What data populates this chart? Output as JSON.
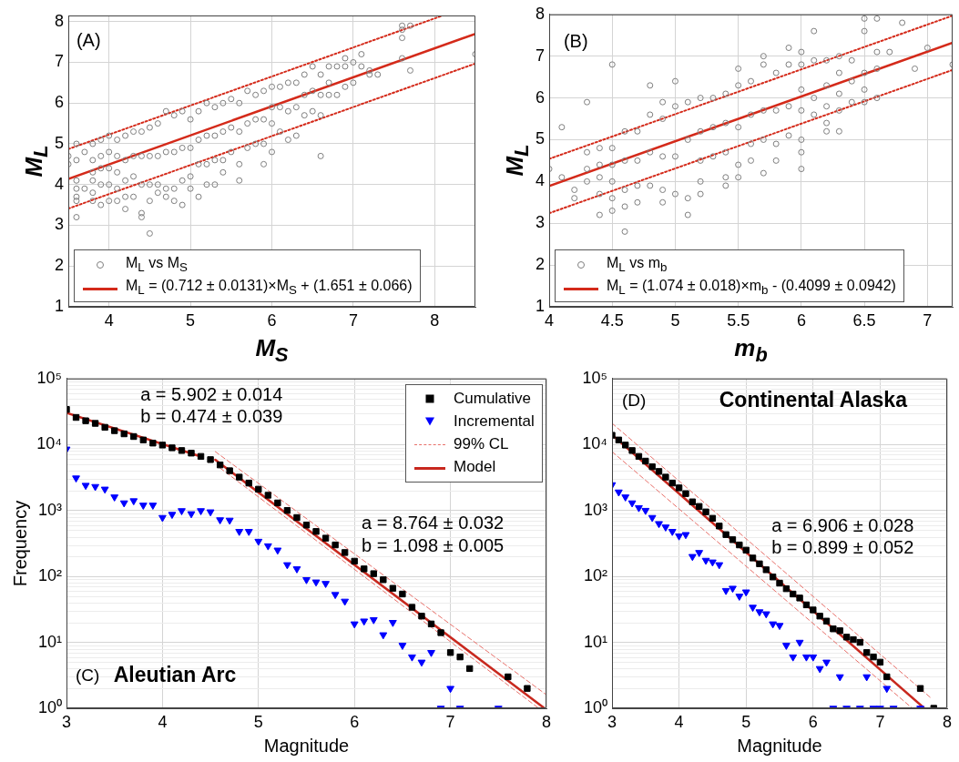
{
  "chart_data": [
    {
      "type": "scatter",
      "xlabel": "M$_{S}$",
      "ylabel": "M$_{L}$",
      "annotations": [
        "(A)"
      ],
      "xlim": [
        3.5,
        8.5
      ],
      "ylim": [
        1,
        8.15
      ],
      "xticks": [
        4,
        5,
        6,
        7,
        8
      ],
      "yticks": [
        1,
        2,
        3,
        4,
        5,
        6,
        7,
        8
      ],
      "grid": true,
      "legend": "bottom",
      "series": [
        {
          "name": "M$_{L}$ vs  M$_{S}$",
          "color": "#7f7f7f",
          "marker": "circle",
          "x": [
            3.5,
            3.5,
            3.6,
            3.6,
            3.6,
            3.6,
            3.6,
            3.6,
            3.6,
            3.7,
            3.7,
            3.8,
            3.8,
            3.8,
            3.8,
            3.8,
            3.8,
            3.9,
            3.9,
            3.9,
            3.9,
            3.9,
            4.0,
            4.0,
            4.0,
            4.0,
            4.0,
            4.1,
            4.1,
            4.1,
            4.1,
            4.1,
            4.2,
            4.2,
            4.2,
            4.2,
            4.2,
            4.3,
            4.3,
            4.3,
            4.3,
            4.4,
            4.4,
            4.4,
            4.4,
            4.4,
            4.5,
            4.5,
            4.5,
            4.5,
            4.5,
            4.6,
            4.6,
            4.6,
            4.6,
            4.7,
            4.7,
            4.7,
            4.7,
            4.8,
            4.8,
            4.8,
            4.8,
            4.9,
            4.9,
            4.9,
            4.9,
            5.0,
            5.0,
            5.0,
            5.0,
            5.1,
            5.1,
            5.1,
            5.1,
            5.2,
            5.2,
            5.2,
            5.2,
            5.3,
            5.3,
            5.3,
            5.3,
            5.4,
            5.4,
            5.4,
            5.4,
            5.5,
            5.5,
            5.5,
            5.6,
            5.6,
            5.6,
            5.6,
            5.7,
            5.7,
            5.7,
            5.8,
            5.8,
            5.8,
            5.9,
            5.9,
            5.9,
            5.9,
            6.0,
            6.0,
            6.0,
            6.0,
            6.1,
            6.1,
            6.1,
            6.2,
            6.2,
            6.2,
            6.3,
            6.3,
            6.3,
            6.4,
            6.4,
            6.4,
            6.5,
            6.5,
            6.5,
            6.6,
            6.6,
            6.6,
            6.6,
            6.7,
            6.7,
            6.7,
            6.8,
            6.8,
            6.9,
            6.9,
            6.9,
            7.0,
            7.0,
            7.1,
            7.1,
            7.2,
            7.2,
            7.3,
            7.6,
            7.6,
            7.6,
            7.6,
            7.7,
            7.7,
            8.5
          ],
          "values": [
            4.7,
            4.5,
            5.0,
            4.6,
            4.1,
            3.9,
            3.7,
            3.6,
            3.2,
            4.8,
            3.9,
            5.0,
            4.6,
            4.3,
            4.1,
            3.8,
            3.6,
            5.1,
            4.7,
            4.4,
            4.0,
            3.5,
            5.2,
            4.8,
            4.4,
            4.0,
            3.6,
            5.1,
            4.7,
            4.3,
            3.9,
            3.6,
            5.2,
            4.6,
            4.1,
            3.7,
            3.4,
            5.3,
            4.7,
            4.2,
            3.7,
            5.3,
            4.7,
            4.0,
            3.3,
            3.2,
            5.4,
            4.7,
            4.0,
            3.6,
            2.8,
            5.5,
            4.7,
            4.0,
            3.8,
            5.8,
            4.8,
            3.9,
            3.7,
            5.7,
            4.8,
            3.9,
            3.6,
            5.8,
            4.9,
            4.1,
            3.5,
            5.6,
            4.9,
            4.2,
            3.9,
            5.8,
            5.1,
            4.5,
            3.7,
            6.0,
            5.2,
            4.5,
            4.0,
            5.9,
            5.2,
            4.6,
            4.0,
            6.0,
            5.3,
            4.6,
            4.3,
            6.1,
            5.4,
            4.8,
            6.0,
            5.3,
            4.5,
            4.1,
            6.3,
            5.5,
            4.9,
            6.2,
            5.6,
            5.0,
            6.3,
            5.6,
            5.0,
            4.5,
            6.4,
            5.9,
            5.5,
            4.8,
            6.4,
            5.9,
            5.3,
            6.5,
            5.8,
            5.1,
            6.5,
            5.9,
            5.2,
            6.7,
            6.2,
            5.7,
            6.9,
            6.3,
            5.8,
            6.7,
            6.2,
            5.7,
            4.7,
            6.9,
            6.5,
            6.2,
            6.9,
            6.2,
            7.1,
            6.9,
            6.4,
            7.0,
            6.5,
            7.2,
            6.9,
            6.8,
            6.7,
            6.7,
            7.9,
            7.8,
            7.6,
            7.1,
            7.9,
            6.8,
            7.2
          ]
        },
        {
          "type": "line",
          "name": "M$_{L}$ = (0.712 ± 0.0131)×M$_{S}$ + (1.651 ± 0.066)",
          "color": "#d42a1a",
          "line_style": "solid",
          "marker": "none",
          "x": [
            3.5,
            8.5
          ],
          "values": [
            4.14,
            7.7
          ]
        },
        {
          "type": "line",
          "color": "#d42a1a",
          "line_style": "dotted",
          "marker": "none",
          "x": [
            3.5,
            8.1
          ],
          "values": [
            4.87,
            8.15
          ]
        },
        {
          "type": "line",
          "color": "#d42a1a",
          "line_style": "dotted",
          "marker": "none",
          "x": [
            3.5,
            8.5
          ],
          "values": [
            3.41,
            6.97
          ]
        }
      ]
    },
    {
      "type": "scatter",
      "xlabel": "m$_{b}$",
      "ylabel": "M$_{L}$",
      "annotations": [
        "(B)"
      ],
      "xlim": [
        4,
        7.2
      ],
      "ylim": [
        1,
        8
      ],
      "xticks": [
        4,
        4.5,
        5,
        5.5,
        6,
        6.5,
        7
      ],
      "yticks": [
        1,
        2,
        3,
        4,
        5,
        6,
        7,
        8
      ],
      "grid": true,
      "legend": "bottom",
      "series": [
        {
          "name": "M$_{L}$ vs  m$_{b}$",
          "color": "#7f7f7f",
          "marker": "circle",
          "x": [
            4.0,
            4.1,
            4.1,
            4.2,
            4.2,
            4.3,
            4.3,
            4.3,
            4.3,
            4.4,
            4.4,
            4.4,
            4.4,
            4.4,
            4.5,
            4.5,
            4.5,
            4.5,
            4.5,
            4.5,
            4.6,
            4.6,
            4.6,
            4.6,
            4.6,
            4.7,
            4.7,
            4.7,
            4.7,
            4.8,
            4.8,
            4.8,
            4.8,
            4.9,
            4.9,
            4.9,
            4.9,
            4.9,
            5.0,
            5.0,
            5.0,
            5.0,
            5.1,
            5.1,
            5.1,
            5.1,
            5.2,
            5.2,
            5.2,
            5.2,
            5.2,
            5.3,
            5.3,
            5.3,
            5.4,
            5.4,
            5.4,
            5.4,
            5.4,
            5.5,
            5.5,
            5.5,
            5.5,
            5.5,
            5.6,
            5.6,
            5.6,
            5.6,
            5.7,
            5.7,
            5.7,
            5.7,
            5.7,
            5.8,
            5.8,
            5.8,
            5.8,
            5.9,
            5.9,
            5.9,
            5.9,
            6.0,
            6.0,
            6.0,
            6.0,
            6.0,
            6.0,
            6.0,
            6.1,
            6.1,
            6.1,
            6.1,
            6.2,
            6.2,
            6.2,
            6.2,
            6.2,
            6.3,
            6.3,
            6.3,
            6.3,
            6.3,
            6.4,
            6.4,
            6.4,
            6.5,
            6.5,
            6.5,
            6.5,
            6.5,
            6.6,
            6.6,
            6.6,
            6.6,
            6.7,
            6.8,
            6.9,
            7.0,
            7.2
          ],
          "values": [
            4.3,
            5.3,
            4.1,
            3.8,
            3.6,
            5.9,
            4.7,
            4.3,
            4.0,
            4.8,
            4.4,
            4.1,
            3.7,
            3.2,
            6.8,
            4.8,
            4.4,
            4.0,
            3.6,
            3.3,
            5.2,
            4.5,
            3.8,
            3.4,
            2.8,
            5.2,
            4.5,
            3.9,
            3.5,
            6.3,
            5.6,
            4.7,
            3.9,
            5.9,
            5.5,
            4.6,
            3.8,
            3.5,
            6.4,
            5.8,
            4.6,
            3.7,
            5.9,
            5.0,
            3.6,
            3.2,
            6.0,
            5.2,
            4.5,
            4.0,
            3.7,
            6.0,
            5.3,
            4.6,
            6.1,
            5.4,
            4.7,
            4.1,
            3.9,
            6.7,
            6.3,
            5.3,
            4.4,
            4.1,
            6.4,
            5.6,
            4.9,
            4.5,
            7.0,
            6.8,
            5.7,
            5.0,
            4.2,
            6.6,
            5.7,
            4.9,
            4.5,
            7.2,
            6.8,
            5.8,
            5.1,
            7.1,
            6.8,
            6.2,
            5.7,
            5.0,
            4.7,
            4.3,
            7.6,
            6.9,
            6.0,
            5.6,
            6.9,
            6.3,
            5.8,
            5.4,
            5.2,
            7.0,
            6.6,
            6.1,
            5.7,
            5.2,
            6.9,
            6.4,
            5.9,
            7.9,
            7.6,
            6.6,
            6.2,
            5.9,
            7.9,
            7.1,
            6.7,
            6.0,
            7.1,
            7.8,
            6.7,
            7.2,
            6.8
          ]
        },
        {
          "type": "line",
          "name": "M$_{L}$ = (1.074 ± 0.018)×m$_{b}$ - (0.4099 ± 0.0942)",
          "color": "#d42a1a",
          "line_style": "solid",
          "marker": "none",
          "x": [
            4.0,
            7.2
          ],
          "values": [
            3.89,
            7.32
          ]
        },
        {
          "type": "line",
          "color": "#d42a1a",
          "line_style": "dotted",
          "marker": "none",
          "x": [
            4.0,
            7.2
          ],
          "values": [
            4.54,
            7.97
          ]
        },
        {
          "type": "line",
          "color": "#d42a1a",
          "line_style": "dotted",
          "marker": "none",
          "x": [
            4.0,
            7.2
          ],
          "values": [
            3.24,
            6.67
          ]
        }
      ]
    },
    {
      "type": "scatter",
      "xlabel": "Magnitude",
      "ylabel": "Frequency",
      "annotations": [
        "a = 5.902 ± 0.014",
        "b = 0.474 ± 0.039",
        "a = 8.764 ± 0.032",
        "b = 1.098 ± 0.005",
        "(C)",
        "Aleutian Arc"
      ],
      "xlim": [
        3,
        8
      ],
      "ylim": [
        1,
        100000
      ],
      "xticks": [
        3,
        4,
        5,
        6,
        7,
        8
      ],
      "yticks": [
        {
          "value": 1,
          "label": "10⁰"
        },
        {
          "value": 10,
          "label": "10¹"
        },
        {
          "value": 100,
          "label": "10²"
        },
        {
          "value": 1000,
          "label": "10³"
        },
        {
          "value": 10000,
          "label": "10⁴"
        },
        {
          "value": 100000,
          "label": "10⁵"
        }
      ],
      "log": "y",
      "grid": true,
      "legend": "top right",
      "series": [
        {
          "name": "Cumulative",
          "color": "#000000",
          "marker": "square",
          "x": [
            3.0,
            3.1,
            3.2,
            3.3,
            3.4,
            3.5,
            3.6,
            3.7,
            3.8,
            3.9,
            4.0,
            4.1,
            4.2,
            4.3,
            4.4,
            4.5,
            4.6,
            4.7,
            4.8,
            4.9,
            5.0,
            5.1,
            5.2,
            5.3,
            5.4,
            5.5,
            5.6,
            5.7,
            5.8,
            5.9,
            6.0,
            6.1,
            6.2,
            6.3,
            6.4,
            6.5,
            6.6,
            6.7,
            6.8,
            6.9,
            7.0,
            7.1,
            7.2,
            7.6,
            7.8
          ],
          "values": [
            34000,
            25700,
            22900,
            20900,
            18200,
            16200,
            14500,
            13200,
            11700,
            10500,
            9800,
            8900,
            8100,
            7400,
            6600,
            5900,
            4900,
            4000,
            3200,
            2600,
            2100,
            1700,
            1300,
            1000,
            780,
            600,
            480,
            380,
            300,
            230,
            170,
            130,
            110,
            89,
            66,
            54,
            34,
            25,
            19,
            14,
            7,
            6,
            4,
            3,
            2
          ]
        },
        {
          "name": "Incremental",
          "color": "#0000ff",
          "marker": "triangle",
          "x": [
            3.0,
            3.1,
            3.2,
            3.3,
            3.4,
            3.5,
            3.6,
            3.7,
            3.8,
            3.9,
            4.0,
            4.1,
            4.2,
            4.3,
            4.4,
            4.5,
            4.6,
            4.7,
            4.8,
            4.9,
            5.0,
            5.1,
            5.2,
            5.3,
            5.4,
            5.5,
            5.6,
            5.7,
            5.8,
            5.9,
            6.0,
            6.1,
            6.2,
            6.3,
            6.4,
            6.5,
            6.6,
            6.7,
            6.8,
            6.9,
            7.0,
            7.1,
            7.5
          ],
          "values": [
            8500,
            3100,
            2400,
            2300,
            2100,
            1600,
            1300,
            1400,
            1200,
            1200,
            780,
            870,
            990,
            890,
            990,
            950,
            720,
            710,
            480,
            480,
            340,
            290,
            250,
            150,
            130,
            89,
            82,
            78,
            53,
            42,
            19,
            21,
            22,
            13,
            20,
            9,
            6,
            5,
            7,
            1,
            2,
            1,
            1
          ]
        },
        {
          "type": "line",
          "name": "99% CL",
          "color": "#e8706a",
          "line_style": "dashed",
          "marker": "none",
          "x": [
            4.55,
            8.0
          ],
          "values": [
            7800,
            1.6
          ]
        },
        {
          "type": "line",
          "name": "Model",
          "color": "#c8281e",
          "line_style": "solid",
          "marker": "none",
          "x": [
            4.55,
            7.98
          ],
          "values": [
            5860,
            1
          ]
        },
        {
          "type": "line",
          "color": "#e8706a",
          "line_style": "dashed",
          "marker": "none",
          "x": [
            4.6,
            7.92
          ],
          "values": [
            4400,
            1
          ]
        },
        {
          "type": "line",
          "color": "#c8281e",
          "line_style": "solid",
          "marker": "none",
          "x": [
            3.0,
            4.4
          ],
          "values": [
            30200,
            6550
          ]
        }
      ]
    },
    {
      "type": "scatter",
      "xlabel": "Magnitude",
      "annotations": [
        "(D)",
        "Continental Alaska",
        "a = 6.906 ± 0.028",
        "b = 0.899 ± 0.052"
      ],
      "xlim": [
        3,
        8
      ],
      "ylim": [
        1,
        100000
      ],
      "xticks": [
        3,
        4,
        5,
        6,
        7,
        8
      ],
      "yticks": [
        {
          "value": 1,
          "label": "10⁰"
        },
        {
          "value": 10,
          "label": "10¹"
        },
        {
          "value": 100,
          "label": "10²"
        },
        {
          "value": 1000,
          "label": "10³"
        },
        {
          "value": 10000,
          "label": "10⁴"
        },
        {
          "value": 100000,
          "label": "10⁵"
        }
      ],
      "log": "y",
      "grid": true,
      "series": [
        {
          "color": "#000000",
          "marker": "square",
          "x": [
            3.0,
            3.1,
            3.2,
            3.3,
            3.4,
            3.5,
            3.6,
            3.7,
            3.8,
            3.9,
            4.0,
            4.1,
            4.2,
            4.3,
            4.4,
            4.5,
            4.6,
            4.7,
            4.8,
            4.9,
            5.0,
            5.1,
            5.2,
            5.3,
            5.4,
            5.5,
            5.6,
            5.7,
            5.8,
            5.9,
            6.0,
            6.1,
            6.2,
            6.3,
            6.4,
            6.5,
            6.6,
            6.7,
            6.8,
            6.9,
            7.0,
            7.1,
            7.6,
            7.8
          ],
          "values": [
            13800,
            11700,
            9800,
            8100,
            6600,
            5600,
            4600,
            3900,
            3200,
            2600,
            2200,
            1800,
            1350,
            1150,
            950,
            760,
            580,
            430,
            360,
            300,
            250,
            190,
            155,
            126,
            98,
            79,
            65,
            54,
            47,
            37,
            31,
            25,
            21,
            16,
            15,
            12,
            11,
            10,
            7,
            6,
            5,
            3,
            2,
            1
          ]
        },
        {
          "color": "#0000ff",
          "marker": "triangle",
          "x": [
            3.0,
            3.1,
            3.2,
            3.3,
            3.4,
            3.5,
            3.6,
            3.7,
            3.8,
            3.9,
            4.0,
            4.1,
            4.2,
            4.3,
            4.4,
            4.5,
            4.6,
            4.7,
            4.8,
            4.9,
            5.0,
            5.1,
            5.2,
            5.3,
            5.4,
            5.5,
            5.6,
            5.7,
            5.8,
            5.9,
            6.0,
            6.1,
            6.2,
            6.3,
            6.4,
            6.5,
            6.7,
            6.8,
            6.9,
            7.0,
            7.1,
            7.2,
            7.6
          ],
          "values": [
            2450,
            1900,
            1600,
            1300,
            1100,
            1000,
            780,
            630,
            560,
            480,
            410,
            430,
            200,
            230,
            175,
            165,
            150,
            61,
            66,
            50,
            58,
            34,
            29,
            27,
            19,
            18,
            9,
            6,
            10,
            6,
            6,
            4,
            5,
            1,
            3,
            1,
            1,
            3,
            1,
            1,
            2,
            1,
            1
          ]
        },
        {
          "type": "line",
          "color": "#e8706a",
          "line_style": "dashed",
          "marker": "none",
          "x": [
            3.0,
            7.77
          ],
          "values": [
            21000,
            1.4
          ]
        },
        {
          "type": "line",
          "color": "#e8706a",
          "line_style": "dashed",
          "marker": "none",
          "x": [
            3.0,
            7.48
          ],
          "values": [
            7800,
            1
          ]
        },
        {
          "type": "line",
          "color": "#c8281e",
          "line_style": "solid",
          "marker": "none",
          "x": [
            3.0,
            7.66
          ],
          "values": [
            14000,
            1
          ]
        }
      ]
    }
  ]
}
